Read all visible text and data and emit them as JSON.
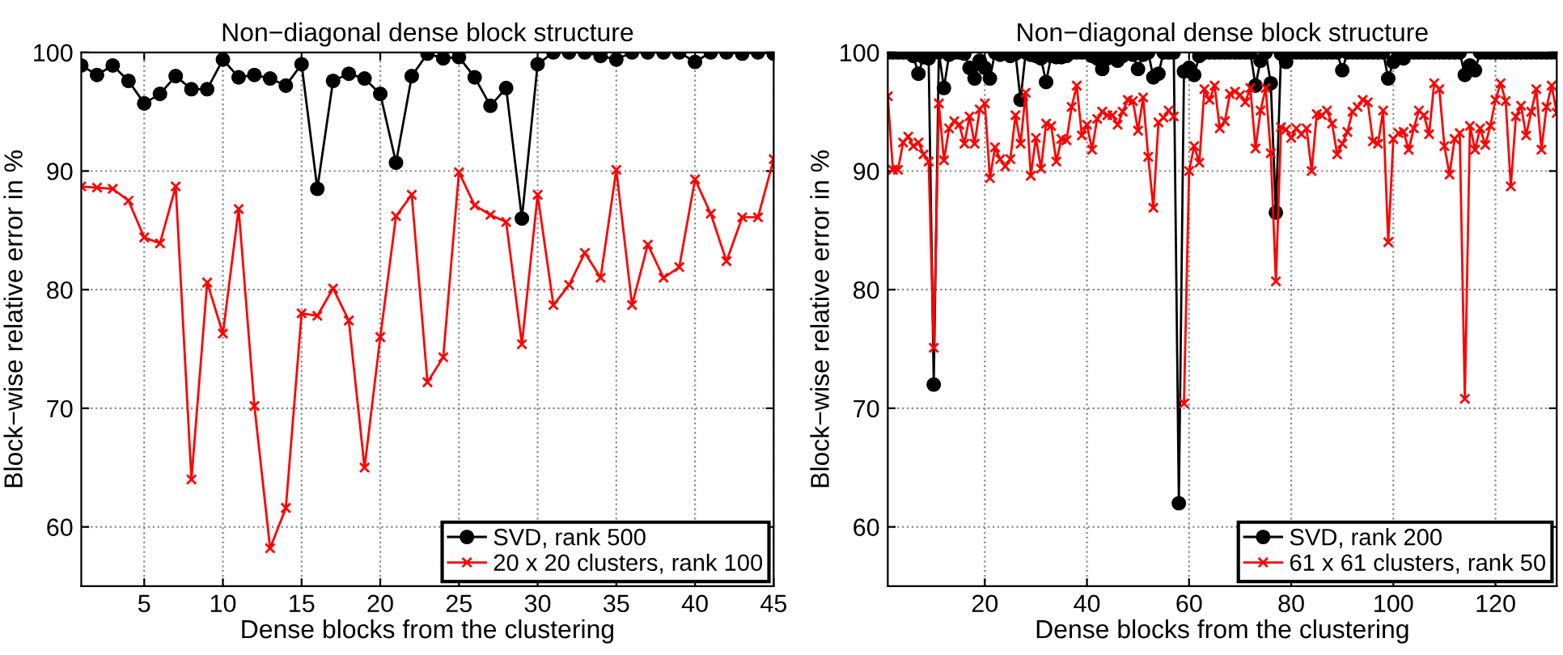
{
  "chart_data": [
    {
      "type": "line",
      "title": "Non−diagonal dense block structure",
      "xlabel": "Dense blocks from the clustering",
      "ylabel": "Block−wise relative error in %",
      "xlim": [
        1,
        45
      ],
      "xticks": [
        5,
        10,
        15,
        20,
        25,
        30,
        35,
        40,
        45
      ],
      "ylim": [
        55,
        100
      ],
      "yticks": [
        60,
        70,
        80,
        90,
        100
      ],
      "grid": true,
      "legend": "bottom right",
      "series": [
        {
          "name": "SVD, rank 500",
          "color": "#000000",
          "marker": "circle",
          "line_style": "solid",
          "x": [
            1,
            2,
            3,
            4,
            5,
            6,
            7,
            8,
            9,
            10,
            11,
            12,
            13,
            14,
            15,
            16,
            17,
            18,
            19,
            20,
            21,
            22,
            23,
            24,
            25,
            26,
            27,
            28,
            29,
            30,
            31,
            32,
            33,
            34,
            35,
            36,
            37,
            38,
            39,
            40,
            41,
            42,
            43,
            44,
            45
          ],
          "values": [
            98.9,
            98.1,
            98.9,
            97.6,
            95.7,
            96.5,
            98.0,
            96.9,
            96.9,
            99.4,
            97.9,
            98.1,
            97.8,
            97.2,
            99.0,
            88.5,
            97.6,
            98.2,
            97.8,
            96.5,
            90.7,
            98.0,
            99.9,
            99.5,
            99.6,
            97.9,
            95.5,
            97.0,
            86.0,
            99.0,
            100,
            100,
            100,
            99.7,
            99.4,
            100,
            100,
            100,
            100,
            99.2,
            100,
            100,
            99.9,
            100,
            99.9
          ]
        },
        {
          "name": "20 x 20 clusters, rank 100",
          "color": "#ff0000",
          "marker": "cross",
          "line_style": "solid",
          "x": [
            1,
            2,
            3,
            4,
            5,
            6,
            7,
            8,
            9,
            10,
            11,
            12,
            13,
            14,
            15,
            16,
            17,
            18,
            19,
            20,
            21,
            22,
            23,
            24,
            25,
            26,
            27,
            28,
            29,
            30,
            31,
            32,
            33,
            34,
            35,
            36,
            37,
            38,
            39,
            40,
            41,
            42,
            43,
            44,
            45
          ],
          "values": [
            88.7,
            88.6,
            88.5,
            87.5,
            84.4,
            83.9,
            88.7,
            64.0,
            80.6,
            76.3,
            86.8,
            70.2,
            58.2,
            61.6,
            78.0,
            77.8,
            80.1,
            77.4,
            65.0,
            76.0,
            86.2,
            88.0,
            72.2,
            74.3,
            89.9,
            87.1,
            86.3,
            85.7,
            75.4,
            88.0,
            78.7,
            80.4,
            83.1,
            81.0,
            90.1,
            78.7,
            83.8,
            81.0,
            81.9,
            89.3,
            86.4,
            82.4,
            86.1,
            86.1,
            91.0
          ]
        }
      ]
    },
    {
      "type": "line",
      "title": "Non−diagonal dense block structure",
      "xlabel": "Dense blocks from the clustering",
      "ylabel": "Block−wise relative error in %",
      "xlim": [
        1,
        132
      ],
      "xticks": [
        20,
        40,
        60,
        80,
        100,
        120
      ],
      "ylim": [
        55,
        100
      ],
      "yticks": [
        60,
        70,
        80,
        90,
        100
      ],
      "grid": true,
      "legend": "bottom right",
      "series": [
        {
          "name": "SVD, rank 200",
          "color": "#000000",
          "marker": "circle",
          "line_style": "solid",
          "x": [
            1,
            2,
            3,
            4,
            5,
            6,
            7,
            8,
            9,
            10,
            11,
            12,
            13,
            14,
            15,
            16,
            17,
            18,
            19,
            20,
            21,
            22,
            23,
            24,
            25,
            26,
            27,
            28,
            29,
            30,
            31,
            32,
            33,
            34,
            35,
            36,
            37,
            38,
            39,
            40,
            41,
            42,
            43,
            44,
            45,
            46,
            47,
            48,
            49,
            50,
            51,
            52,
            53,
            54,
            55,
            56,
            57,
            58,
            59,
            60,
            61,
            62,
            63,
            64,
            65,
            66,
            67,
            68,
            69,
            70,
            71,
            72,
            73,
            74,
            75,
            76,
            77,
            78,
            79,
            80,
            81,
            82,
            83,
            84,
            85,
            86,
            87,
            88,
            89,
            90,
            91,
            92,
            93,
            94,
            95,
            96,
            97,
            98,
            99,
            100,
            101,
            102,
            103,
            104,
            105,
            106,
            107,
            108,
            109,
            110,
            111,
            112,
            113,
            114,
            115,
            116,
            117,
            118,
            119,
            120,
            121,
            122,
            123,
            124,
            125,
            126,
            127,
            128,
            129,
            130,
            131,
            132
          ],
          "values": [
            100,
            100,
            100,
            100,
            100,
            99.7,
            98.2,
            99.6,
            99.5,
            72.0,
            100,
            97.0,
            99.8,
            100,
            100,
            99.9,
            98.7,
            97.8,
            99.3,
            98.7,
            97.8,
            100,
            99.8,
            100,
            99.7,
            99.9,
            96.0,
            100,
            99.8,
            99.7,
            99.5,
            97.5,
            99.7,
            99.6,
            99.6,
            99.7,
            100,
            100,
            100,
            100,
            99.7,
            99.5,
            98.6,
            99.5,
            99.6,
            99.3,
            99.7,
            100,
            99.8,
            98.6,
            99.8,
            100,
            97.9,
            98.2,
            100,
            100,
            100,
            62.0,
            98.4,
            98.7,
            98.1,
            99.7,
            100,
            100,
            100,
            100,
            100,
            100,
            100,
            100,
            100,
            100,
            97.2,
            99.3,
            100,
            97.4,
            86.5,
            99.9,
            99.2,
            100,
            100,
            100,
            100,
            100,
            100,
            100,
            100,
            100,
            100,
            98.5,
            100,
            100,
            100,
            100,
            100,
            100,
            100,
            100,
            97.8,
            99.2,
            99.9,
            99.5,
            100,
            100,
            100,
            100,
            100,
            100,
            100,
            100,
            100,
            100,
            100,
            98.1,
            98.9,
            98.5,
            100,
            100,
            100,
            100,
            100,
            100,
            100,
            100,
            100,
            100,
            100,
            100,
            100,
            100,
            100,
            100
          ]
        },
        {
          "name": "61 x 61 clusters, rank 50",
          "color": "#ff0000",
          "marker": "cross",
          "line_style": "solid",
          "x": [
            1,
            2,
            3,
            4,
            5,
            6,
            7,
            8,
            9,
            10,
            11,
            12,
            13,
            14,
            15,
            16,
            17,
            18,
            19,
            20,
            21,
            22,
            23,
            24,
            25,
            26,
            27,
            28,
            29,
            30,
            31,
            32,
            33,
            34,
            35,
            36,
            37,
            38,
            39,
            40,
            41,
            42,
            43,
            44,
            45,
            46,
            47,
            48,
            49,
            50,
            51,
            52,
            53,
            54,
            55,
            56,
            57,
            58,
            59,
            60,
            61,
            62,
            63,
            64,
            65,
            66,
            67,
            68,
            69,
            70,
            71,
            72,
            73,
            74,
            75,
            76,
            77,
            78,
            79,
            80,
            81,
            82,
            83,
            84,
            85,
            86,
            87,
            88,
            89,
            90,
            91,
            92,
            93,
            94,
            95,
            96,
            97,
            98,
            99,
            100,
            101,
            102,
            103,
            104,
            105,
            106,
            107,
            108,
            109,
            110,
            111,
            112,
            113,
            114,
            115,
            116,
            117,
            118,
            119,
            120,
            121,
            122,
            123,
            124,
            125,
            126,
            127,
            128,
            129,
            130,
            131,
            132
          ],
          "values": [
            96.3,
            90.1,
            90.1,
            92.4,
            92.9,
            92.1,
            92.4,
            91.4,
            90.8,
            75.1,
            95.7,
            90.9,
            93.6,
            94.2,
            93.9,
            92.3,
            94.6,
            92.3,
            95.2,
            95.7,
            89.4,
            92.0,
            91.0,
            90.4,
            91.0,
            94.7,
            92.3,
            96.6,
            89.6,
            92.8,
            90.2,
            94.0,
            93.8,
            90.8,
            92.7,
            92.6,
            95.4,
            97.2,
            93.0,
            93.9,
            91.8,
            94.4,
            95.0,
            94.7,
            94.7,
            93.9,
            95.0,
            96.0,
            95.9,
            93.4,
            96.2,
            91.2,
            86.9,
            94.1,
            94.5,
            95.1,
            94.6,
            null,
            70.4,
            90.0,
            92.1,
            90.7,
            96.9,
            96.0,
            97.2,
            93.6,
            94.2,
            96.5,
            96.7,
            96.4,
            95.8,
            97.0,
            91.9,
            95.1,
            97.0,
            91.5,
            80.7,
            93.7,
            93.5,
            92.8,
            93.6,
            93.1,
            93.6,
            90.0,
            94.8,
            94.7,
            95.1,
            94.0,
            91.4,
            92.3,
            93.3,
            95.0,
            95.4,
            96.0,
            95.8,
            92.5,
            92.3,
            95.1,
            84.0,
            92.7,
            93.2,
            93.3,
            91.8,
            93.6,
            95.1,
            94.7,
            93.1,
            97.4,
            96.9,
            92.1,
            89.7,
            92.7,
            93.2,
            70.8,
            93.8,
            91.8,
            93.6,
            92.2,
            93.8,
            96.0,
            97.4,
            95.9,
            88.7,
            94.6,
            95.5,
            93.0,
            95.0,
            96.9,
            91.8,
            95.4,
            97.2,
            94.9
          ]
        }
      ]
    }
  ]
}
